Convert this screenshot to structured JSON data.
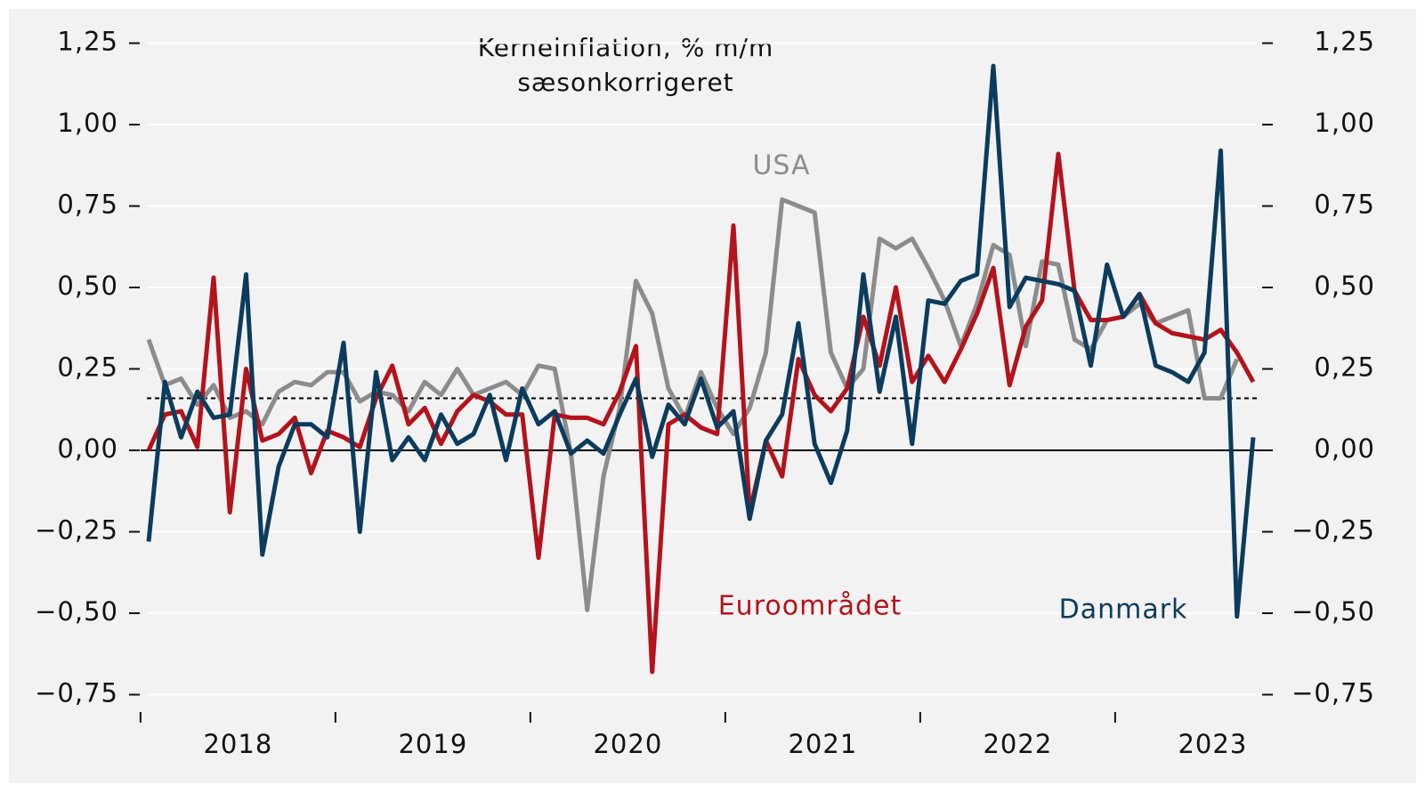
{
  "chart_data": {
    "type": "line",
    "title": "Kerneinflation, % m/m",
    "subtitle": "sæsonkorrigeret",
    "categories": [
      null,
      null,
      null,
      null,
      null,
      null,
      "2018",
      null,
      null,
      null,
      null,
      null,
      null,
      null,
      null,
      null,
      null,
      null,
      "2019",
      null,
      null,
      null,
      null,
      null,
      null,
      null,
      null,
      null,
      null,
      null,
      "2020",
      null,
      null,
      null,
      null,
      null,
      null,
      null,
      null,
      null,
      null,
      null,
      "2021",
      null,
      null,
      null,
      null,
      null,
      null,
      null,
      null,
      null,
      null,
      null,
      "2022",
      null,
      null,
      null,
      null,
      null,
      null,
      null,
      null,
      null,
      null,
      null,
      "2023",
      null,
      null
    ],
    "series": [
      {
        "name": "Danmark",
        "color": "#0b3c5d",
        "values": [
          -0.28,
          0.21,
          0.04,
          0.18,
          0.1,
          0.11,
          0.54,
          -0.32,
          -0.05,
          0.08,
          0.08,
          0.04,
          0.33,
          -0.25,
          0.24,
          -0.03,
          0.04,
          -0.03,
          0.11,
          0.02,
          0.05,
          0.17,
          -0.03,
          0.19,
          0.08,
          0.12,
          -0.01,
          0.03,
          -0.01,
          0.11,
          0.22,
          -0.02,
          0.14,
          0.08,
          0.22,
          0.07,
          0.12,
          -0.21,
          0.03,
          0.11,
          0.39,
          0.02,
          -0.1,
          0.06,
          0.54,
          0.18,
          0.41,
          0.02,
          0.46,
          0.45,
          0.52,
          0.54,
          1.18,
          0.44,
          0.53,
          0.52,
          0.51,
          0.49,
          0.26,
          0.57,
          0.41,
          0.48,
          0.26,
          0.24,
          0.21,
          0.3,
          0.92,
          -0.51,
          0.04
        ]
      },
      {
        "name": "Euroområdet",
        "color": "#b5121b",
        "values": [
          0.0,
          0.11,
          0.12,
          0.01,
          0.53,
          -0.19,
          0.25,
          0.03,
          0.05,
          0.1,
          -0.07,
          0.06,
          0.04,
          0.01,
          0.16,
          0.26,
          0.08,
          0.13,
          0.02,
          0.12,
          0.17,
          0.15,
          0.11,
          0.11,
          -0.33,
          0.11,
          0.1,
          0.1,
          0.08,
          0.18,
          0.32,
          -0.68,
          0.08,
          0.11,
          0.07,
          0.05,
          0.69,
          -0.19,
          0.03,
          -0.08,
          0.28,
          0.17,
          0.12,
          0.19,
          0.41,
          0.26,
          0.5,
          0.21,
          0.29,
          0.21,
          0.31,
          0.42,
          0.56,
          0.2,
          0.38,
          0.46,
          0.91,
          0.49,
          0.4,
          0.4,
          0.41,
          0.48,
          0.39,
          0.36,
          0.35,
          0.34,
          0.37,
          0.3,
          0.21
        ]
      },
      {
        "name": "USA",
        "color": "#8c8c8c",
        "values": [
          0.34,
          0.2,
          0.22,
          0.14,
          0.2,
          0.1,
          0.12,
          0.08,
          0.18,
          0.21,
          0.2,
          0.24,
          0.24,
          0.15,
          0.18,
          0.17,
          0.12,
          0.21,
          0.17,
          0.25,
          0.17,
          0.19,
          0.21,
          0.17,
          0.26,
          0.25,
          -0.01,
          -0.49,
          -0.08,
          0.13,
          0.52,
          0.42,
          0.19,
          0.1,
          0.24,
          0.13,
          0.05,
          0.13,
          0.3,
          0.77,
          0.75,
          0.73,
          0.3,
          0.19,
          0.25,
          0.65,
          0.62,
          0.65,
          0.56,
          0.46,
          0.32,
          0.45,
          0.63,
          0.6,
          0.32,
          0.58,
          0.57,
          0.34,
          0.31,
          0.4,
          0.41,
          0.45,
          0.39,
          0.41,
          0.43,
          0.16,
          0.16,
          0.28,
          null
        ]
      }
    ],
    "reference_line": 0.16,
    "ylim": [
      -0.75,
      1.25
    ],
    "yticks": [
      {
        "value": -0.75,
        "label": "−0,75"
      },
      {
        "value": -0.5,
        "label": "−0,50"
      },
      {
        "value": -0.25,
        "label": "−0,25"
      },
      {
        "value": 0,
        "label": "0,00"
      },
      {
        "value": 0.25,
        "label": "0,25"
      },
      {
        "value": 0.5,
        "label": "0,50"
      },
      {
        "value": 0.75,
        "label": "0,75"
      },
      {
        "value": 1,
        "label": "1,00"
      },
      {
        "value": 1.25,
        "label": "1,25"
      }
    ],
    "y2lim": [
      -0.75,
      1.25
    ],
    "y2ticks": [
      {
        "value": -0.75,
        "label": "−0,75"
      },
      {
        "value": -0.5,
        "label": "−0,50"
      },
      {
        "value": -0.25,
        "label": "−0,25"
      },
      {
        "value": 0,
        "label": "0,00"
      },
      {
        "value": 0.25,
        "label": "0,25"
      },
      {
        "value": 0.5,
        "label": "0,50"
      },
      {
        "value": 0.75,
        "label": "0,75"
      },
      {
        "value": 1,
        "label": "1,00"
      },
      {
        "value": 1.25,
        "label": "1,25"
      }
    ],
    "grid": true
  }
}
